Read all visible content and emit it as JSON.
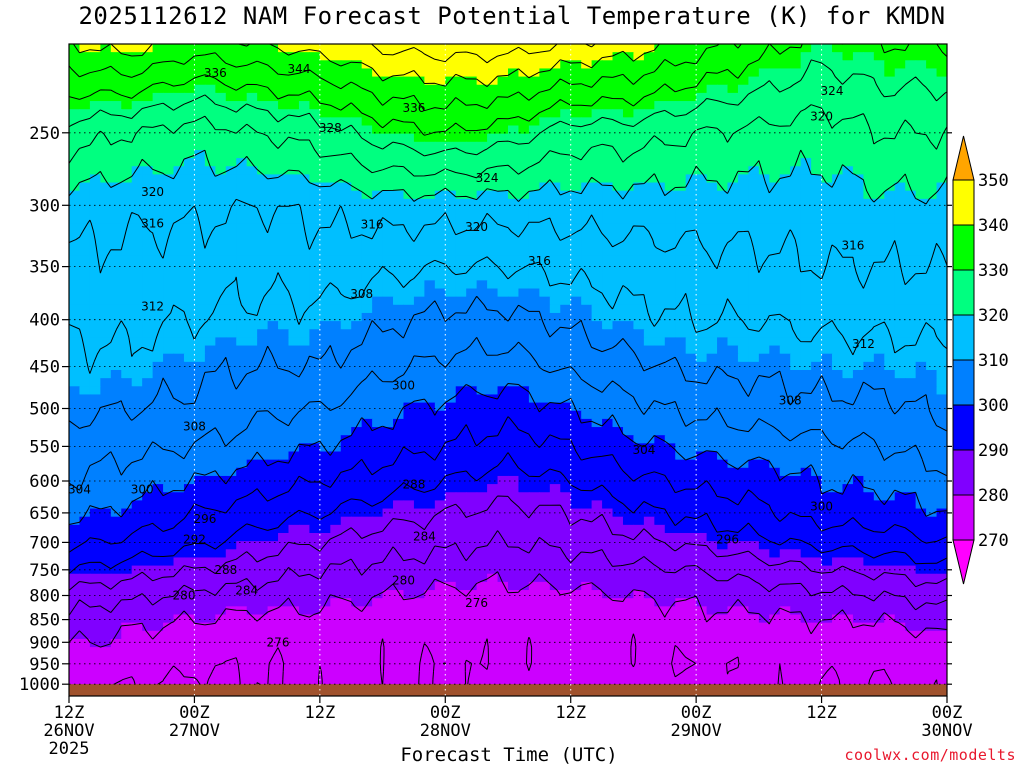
{
  "title": "2025112612 NAM Forecast Potential Temperature (K) for KMDN",
  "xlabel": "Forecast Time (UTC)",
  "credit": "coolwx.com/modelts",
  "chart_data": {
    "type": "heatmap",
    "title": "2025112612 NAM Forecast Potential Temperature (K) for KMDN",
    "xlabel": "Forecast Time (UTC)",
    "ylabel": "",
    "x_ticks": [
      {
        "hour": 0,
        "label": "12Z",
        "sub": "26NOV",
        "sub2": "2025"
      },
      {
        "hour": 12,
        "label": "00Z",
        "sub": "27NOV"
      },
      {
        "hour": 24,
        "label": "12Z",
        "sub": ""
      },
      {
        "hour": 36,
        "label": "00Z",
        "sub": "28NOV"
      },
      {
        "hour": 48,
        "label": "12Z",
        "sub": ""
      },
      {
        "hour": 60,
        "label": "00Z",
        "sub": "29NOV"
      },
      {
        "hour": 72,
        "label": "12Z",
        "sub": ""
      },
      {
        "hour": 84,
        "label": "00Z",
        "sub": "30NOV"
      }
    ],
    "xlim_hours": [
      0,
      84
    ],
    "y_axis": "pressure (hPa, log scale, inverted)",
    "y_ticks": [
      250,
      300,
      350,
      400,
      450,
      500,
      550,
      600,
      650,
      700,
      750,
      800,
      850,
      900,
      950,
      1000
    ],
    "ylim_hPa": [
      200,
      1030
    ],
    "ground_hPa": 1000,
    "grid": true,
    "colorbar": {
      "levels": [
        270,
        280,
        290,
        300,
        310,
        320,
        330,
        340,
        350
      ],
      "colors": [
        "#ff00ff",
        "#cc00ff",
        "#8000ff",
        "#0000ff",
        "#0080ff",
        "#00bfff",
        "#00ff80",
        "#00ff00",
        "#ffff00",
        "#ffa500"
      ],
      "extend": "both"
    },
    "contour_interval_K": 4,
    "contour_labels": [
      {
        "value": 336,
        "hour": 14,
        "p": 215
      },
      {
        "value": 344,
        "hour": 22,
        "p": 213
      },
      {
        "value": 336,
        "hour": 33,
        "p": 235
      },
      {
        "value": 328,
        "hour": 25,
        "p": 247
      },
      {
        "value": 324,
        "hour": 73,
        "p": 225
      },
      {
        "value": 320,
        "hour": 72,
        "p": 240
      },
      {
        "value": 324,
        "hour": 40,
        "p": 280
      },
      {
        "value": 320,
        "hour": 8,
        "p": 290
      },
      {
        "value": 320,
        "hour": 39,
        "p": 317
      },
      {
        "value": 316,
        "hour": 8,
        "p": 314
      },
      {
        "value": 316,
        "hour": 29,
        "p": 315
      },
      {
        "value": 316,
        "hour": 45,
        "p": 345
      },
      {
        "value": 316,
        "hour": 75,
        "p": 332
      },
      {
        "value": 312,
        "hour": 8,
        "p": 387
      },
      {
        "value": 308,
        "hour": 28,
        "p": 375
      },
      {
        "value": 312,
        "hour": 76,
        "p": 425
      },
      {
        "value": 300,
        "hour": 32,
        "p": 472
      },
      {
        "value": 308,
        "hour": 69,
        "p": 490
      },
      {
        "value": 308,
        "hour": 12,
        "p": 523
      },
      {
        "value": 304,
        "hour": 55,
        "p": 555
      },
      {
        "value": 304,
        "hour": 1,
        "p": 613
      },
      {
        "value": 300,
        "hour": 7,
        "p": 613
      },
      {
        "value": 288,
        "hour": 33,
        "p": 605
      },
      {
        "value": 296,
        "hour": 13,
        "p": 660
      },
      {
        "value": 300,
        "hour": 72,
        "p": 640
      },
      {
        "value": 292,
        "hour": 12,
        "p": 695
      },
      {
        "value": 284,
        "hour": 34,
        "p": 690
      },
      {
        "value": 296,
        "hour": 63,
        "p": 695
      },
      {
        "value": 288,
        "hour": 15,
        "p": 750
      },
      {
        "value": 284,
        "hour": 17,
        "p": 790
      },
      {
        "value": 280,
        "hour": 32,
        "p": 770
      },
      {
        "value": 280,
        "hour": 11,
        "p": 800
      },
      {
        "value": 276,
        "hour": 39,
        "p": 815
      },
      {
        "value": 276,
        "hour": 20,
        "p": 900
      }
    ],
    "cross_section_profiles_K": {
      "note": "potential temperature by pressure level at selected forecast hours",
      "pressure_levels_hPa": [
        1000,
        950,
        900,
        850,
        800,
        750,
        700,
        650,
        600,
        550,
        500,
        450,
        400,
        350,
        300,
        250,
        200
      ],
      "profiles": [
        {
          "hour": 0,
          "theta": [
            277,
            279,
            280,
            283,
            286,
            292,
            297,
            301,
            304,
            306,
            309,
            311,
            313,
            315,
            318,
            326,
            340
          ]
        },
        {
          "hour": 6,
          "theta": [
            276,
            278,
            279,
            281,
            285,
            290,
            295,
            299,
            302,
            305,
            308,
            311,
            313,
            315,
            317,
            324,
            342
          ]
        },
        {
          "hour": 12,
          "theta": [
            275,
            277,
            278,
            280,
            283,
            288,
            293,
            296,
            300,
            304,
            307,
            309,
            312,
            314,
            317,
            322,
            338
          ]
        },
        {
          "hour": 18,
          "theta": [
            276,
            276,
            277,
            279,
            282,
            286,
            290,
            294,
            298,
            302,
            305,
            308,
            311,
            313,
            316,
            324,
            340
          ]
        },
        {
          "hour": 24,
          "theta": [
            277,
            277,
            278,
            279,
            281,
            284,
            288,
            292,
            296,
            300,
            304,
            308,
            311,
            314,
            317,
            326,
            342
          ]
        },
        {
          "hour": 30,
          "theta": [
            277,
            277,
            277,
            278,
            280,
            283,
            286,
            290,
            294,
            298,
            301,
            305,
            309,
            313,
            318,
            330,
            345
          ]
        },
        {
          "hour": 36,
          "theta": [
            276,
            276,
            277,
            278,
            279,
            282,
            285,
            288,
            292,
            296,
            299,
            303,
            307,
            312,
            318,
            332,
            346
          ]
        },
        {
          "hour": 42,
          "theta": [
            278,
            277,
            277,
            278,
            279,
            281,
            284,
            287,
            290,
            294,
            298,
            302,
            307,
            312,
            318,
            330,
            346
          ]
        },
        {
          "hour": 48,
          "theta": [
            278,
            277,
            277,
            278,
            279,
            282,
            285,
            288,
            292,
            296,
            300,
            305,
            309,
            313,
            318,
            326,
            344
          ]
        },
        {
          "hour": 54,
          "theta": [
            278,
            277,
            277,
            278,
            280,
            283,
            287,
            291,
            295,
            299,
            303,
            307,
            311,
            314,
            318,
            326,
            342
          ]
        },
        {
          "hour": 60,
          "theta": [
            277,
            276,
            277,
            279,
            281,
            284,
            289,
            293,
            297,
            301,
            305,
            309,
            312,
            315,
            318,
            324,
            338
          ]
        },
        {
          "hour": 66,
          "theta": [
            277,
            277,
            278,
            279,
            282,
            286,
            291,
            295,
            298,
            302,
            306,
            309,
            312,
            315,
            318,
            323,
            334
          ]
        },
        {
          "hour": 72,
          "theta": [
            276,
            277,
            278,
            280,
            283,
            288,
            293,
            298,
            300,
            303,
            307,
            310,
            313,
            316,
            318,
            322,
            330
          ]
        },
        {
          "hour": 78,
          "theta": [
            276,
            277,
            278,
            280,
            284,
            289,
            294,
            298,
            301,
            304,
            307,
            310,
            313,
            316,
            319,
            324,
            332
          ]
        },
        {
          "hour": 84,
          "theta": [
            277,
            278,
            279,
            282,
            286,
            291,
            296,
            300,
            303,
            306,
            309,
            311,
            313,
            316,
            319,
            324,
            332
          ]
        }
      ]
    }
  }
}
